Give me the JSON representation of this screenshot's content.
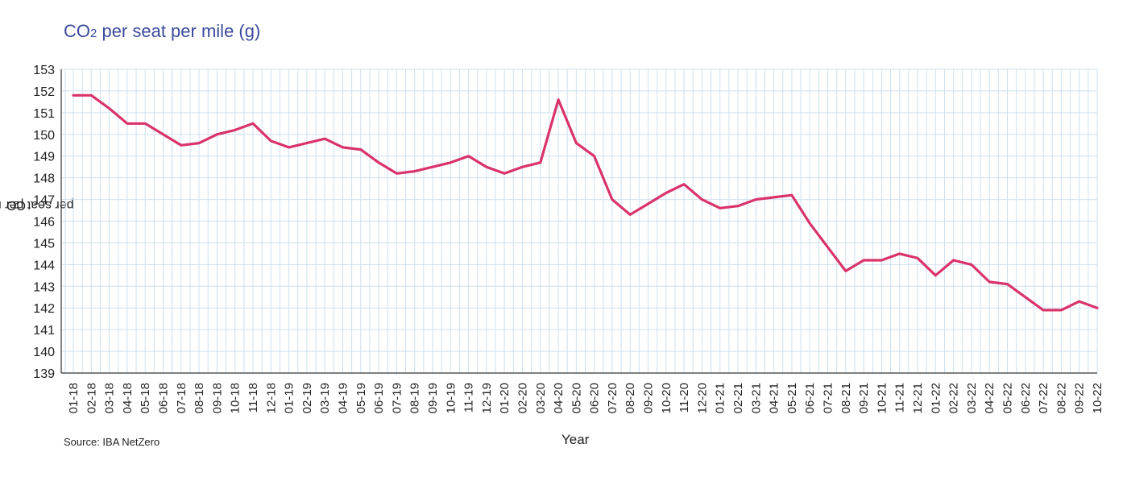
{
  "title": {
    "main": "CO",
    "sub": "2",
    "rest": " per seat per mile (g)"
  },
  "source": "Source: IBA NetZero",
  "chart_data": {
    "type": "line",
    "title": "CO2 per seat per mile (g)",
    "xlabel": "Year",
    "ylabel": {
      "main": "CO",
      "sub": "2",
      "rest": " per seat per mile (g)"
    },
    "ylim": [
      139,
      153
    ],
    "yticks": [
      139,
      140,
      141,
      142,
      143,
      144,
      145,
      146,
      147,
      148,
      149,
      150,
      151,
      152,
      153
    ],
    "grid": true,
    "line_color": "#d9336a",
    "x": [
      "01-18",
      "02-18",
      "03-18",
      "04-18",
      "05-18",
      "06-18",
      "07-18",
      "08-18",
      "09-18",
      "10-18",
      "11-18",
      "12-18",
      "01-19",
      "02-19",
      "03-19",
      "04-19",
      "05-19",
      "06-19",
      "07-19",
      "08-19",
      "09-19",
      "10-19",
      "11-19",
      "12-19",
      "01-20",
      "02-20",
      "03-20",
      "04-20",
      "05-20",
      "06-20",
      "07-20",
      "08-20",
      "09-20",
      "10-20",
      "11-20",
      "12-20",
      "01-21",
      "02-21",
      "03-21",
      "04-21",
      "05-21",
      "06-21",
      "07-21",
      "08-21",
      "09-21",
      "10-21",
      "11-21",
      "12-21",
      "01-22",
      "02-22",
      "03-22",
      "04-22",
      "05-22",
      "06-22",
      "07-22",
      "08-22",
      "09-22",
      "10-22"
    ],
    "values": [
      151.8,
      151.8,
      151.2,
      150.5,
      150.5,
      150.0,
      149.5,
      149.6,
      150.0,
      150.2,
      150.5,
      149.7,
      149.4,
      149.6,
      149.8,
      149.4,
      149.3,
      148.7,
      148.2,
      148.3,
      148.5,
      148.7,
      149.0,
      148.5,
      148.2,
      148.5,
      148.7,
      151.6,
      149.6,
      149.0,
      147.0,
      146.3,
      146.8,
      147.3,
      147.7,
      147.0,
      146.6,
      146.7,
      147.0,
      147.1,
      147.2,
      145.9,
      144.8,
      143.7,
      144.2,
      144.2,
      144.5,
      144.3,
      143.5,
      144.2,
      144.0,
      143.2,
      143.1,
      142.5,
      141.9,
      141.9,
      142.3,
      142.0
    ]
  }
}
